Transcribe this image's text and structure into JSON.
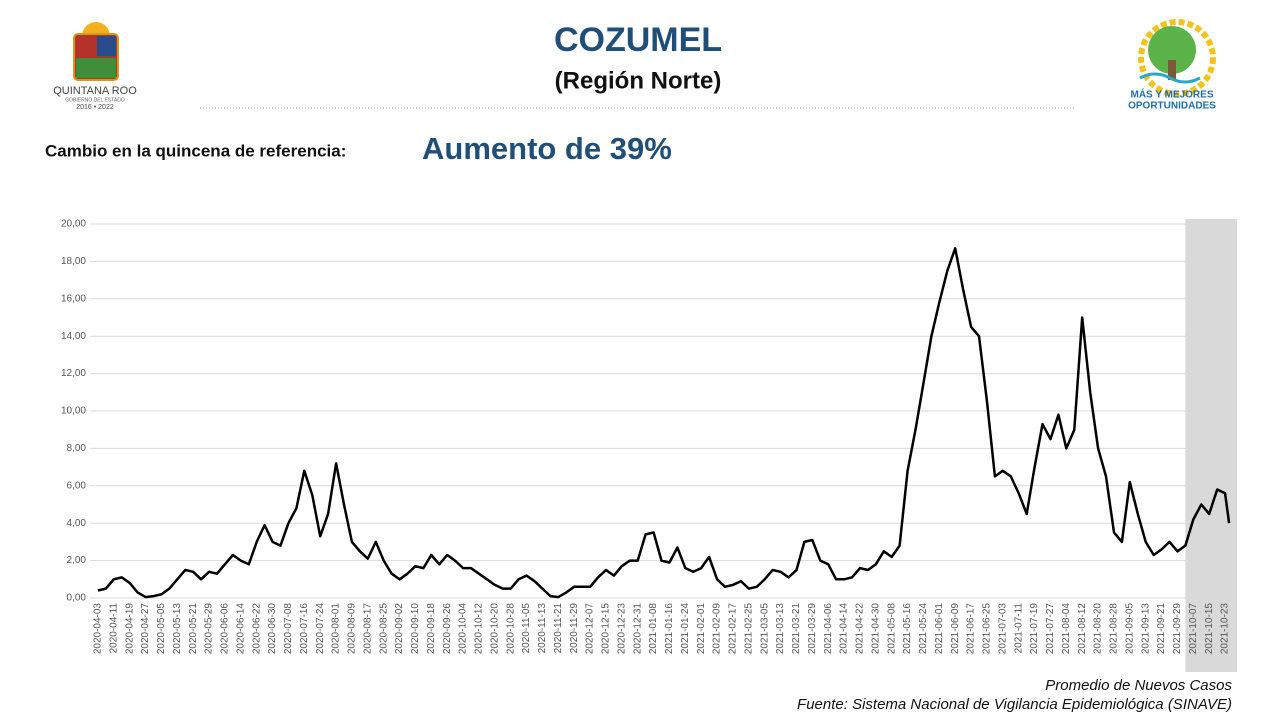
{
  "header": {
    "title": "COZUMEL",
    "subtitle": "(Región Norte)",
    "change_label": "Cambio en la quincena de referencia:",
    "change_value": "Aumento de 39%"
  },
  "logos": {
    "left": {
      "name": "QUINTANA ROO",
      "sub": "GOBIERNO DEL ESTADO",
      "years": "2016 • 2022"
    },
    "right": {
      "line1": "MÁS Y MEJORES",
      "line2": "OPORTUNIDADES"
    }
  },
  "footer": {
    "note": "Promedio de Nuevos Casos",
    "source": "Fuente: Sistema Nacional de Vigilancia Epidemiológica (SINAVE)"
  },
  "chart_data": {
    "type": "line",
    "color": "#000000",
    "grid": true,
    "xlim": [
      "2020-03-30",
      "2021-10-29"
    ],
    "highlight_range": [
      "2021-10-03",
      "2021-10-29"
    ],
    "ylim": [
      0,
      20
    ],
    "yticks": [
      {
        "value": 0,
        "label": "0,00"
      },
      {
        "value": 2,
        "label": "2,00"
      },
      {
        "value": 4,
        "label": "4,00"
      },
      {
        "value": 6,
        "label": "6,00"
      },
      {
        "value": 8,
        "label": "8,00"
      },
      {
        "value": 10,
        "label": "10,00"
      },
      {
        "value": 12,
        "label": "12,00"
      },
      {
        "value": 14,
        "label": "14,00"
      },
      {
        "value": 16,
        "label": "16,00"
      },
      {
        "value": 18,
        "label": "18,00"
      },
      {
        "value": 20,
        "label": "20,00"
      }
    ],
    "xticks": [
      "2020-04-03",
      "2020-04-11",
      "2020-04-19",
      "2020-04-27",
      "2020-05-05",
      "2020-05-13",
      "2020-05-21",
      "2020-05-29",
      "2020-06-06",
      "2020-06-14",
      "2020-06-22",
      "2020-06-30",
      "2020-07-08",
      "2020-07-16",
      "2020-07-24",
      "2020-08-01",
      "2020-08-09",
      "2020-08-17",
      "2020-08-25",
      "2020-09-02",
      "2020-09-10",
      "2020-09-18",
      "2020-09-26",
      "2020-10-04",
      "2020-10-12",
      "2020-10-20",
      "2020-10-28",
      "2020-11-05",
      "2020-11-13",
      "2020-11-21",
      "2020-11-29",
      "2020-12-07",
      "2020-12-15",
      "2020-12-23",
      "2020-12-31",
      "2021-01-08",
      "2021-01-16",
      "2021-01-24",
      "2021-02-01",
      "2021-02-09",
      "2021-02-17",
      "2021-02-25",
      "2021-03-05",
      "2021-03-13",
      "2021-03-21",
      "2021-03-29",
      "2021-04-06",
      "2021-04-14",
      "2021-04-22",
      "2021-04-30",
      "2021-05-08",
      "2021-05-16",
      "2021-05-24",
      "2021-06-01",
      "2021-06-09",
      "2021-06-17",
      "2021-06-25",
      "2021-07-03",
      "2021-07-11",
      "2021-07-19",
      "2021-07-27",
      "2021-08-04",
      "2021-08-12",
      "2021-08-20",
      "2021-08-28",
      "2021-09-05",
      "2021-09-13",
      "2021-09-21",
      "2021-09-29",
      "2021-10-07",
      "2021-10-15",
      "2021-10-23"
    ],
    "x": [
      "2020-04-03",
      "2020-04-07",
      "2020-04-11",
      "2020-04-15",
      "2020-04-19",
      "2020-04-23",
      "2020-04-27",
      "2020-05-01",
      "2020-05-05",
      "2020-05-09",
      "2020-05-13",
      "2020-05-17",
      "2020-05-21",
      "2020-05-25",
      "2020-05-29",
      "2020-06-02",
      "2020-06-06",
      "2020-06-10",
      "2020-06-14",
      "2020-06-18",
      "2020-06-22",
      "2020-06-26",
      "2020-06-30",
      "2020-07-04",
      "2020-07-08",
      "2020-07-12",
      "2020-07-16",
      "2020-07-20",
      "2020-07-24",
      "2020-07-28",
      "2020-08-01",
      "2020-08-05",
      "2020-08-09",
      "2020-08-13",
      "2020-08-17",
      "2020-08-21",
      "2020-08-25",
      "2020-08-29",
      "2020-09-02",
      "2020-09-06",
      "2020-09-10",
      "2020-09-14",
      "2020-09-18",
      "2020-09-22",
      "2020-09-26",
      "2020-09-30",
      "2020-10-04",
      "2020-10-08",
      "2020-10-12",
      "2020-10-16",
      "2020-10-20",
      "2020-10-24",
      "2020-10-28",
      "2020-11-01",
      "2020-11-05",
      "2020-11-09",
      "2020-11-13",
      "2020-11-17",
      "2020-11-21",
      "2020-11-25",
      "2020-11-29",
      "2020-12-03",
      "2020-12-07",
      "2020-12-11",
      "2020-12-15",
      "2020-12-19",
      "2020-12-23",
      "2020-12-27",
      "2020-12-31",
      "2021-01-04",
      "2021-01-08",
      "2021-01-12",
      "2021-01-16",
      "2021-01-20",
      "2021-01-24",
      "2021-01-28",
      "2021-02-01",
      "2021-02-05",
      "2021-02-09",
      "2021-02-13",
      "2021-02-17",
      "2021-02-21",
      "2021-02-25",
      "2021-03-01",
      "2021-03-05",
      "2021-03-09",
      "2021-03-13",
      "2021-03-17",
      "2021-03-21",
      "2021-03-25",
      "2021-03-29",
      "2021-04-02",
      "2021-04-06",
      "2021-04-10",
      "2021-04-14",
      "2021-04-18",
      "2021-04-22",
      "2021-04-26",
      "2021-04-30",
      "2021-05-04",
      "2021-05-08",
      "2021-05-12",
      "2021-05-16",
      "2021-05-20",
      "2021-05-24",
      "2021-05-28",
      "2021-06-01",
      "2021-06-05",
      "2021-06-09",
      "2021-06-13",
      "2021-06-17",
      "2021-06-21",
      "2021-06-25",
      "2021-06-29",
      "2021-07-03",
      "2021-07-07",
      "2021-07-11",
      "2021-07-15",
      "2021-07-19",
      "2021-07-23",
      "2021-07-27",
      "2021-07-31",
      "2021-08-04",
      "2021-08-08",
      "2021-08-12",
      "2021-08-16",
      "2021-08-20",
      "2021-08-24",
      "2021-08-28",
      "2021-09-01",
      "2021-09-05",
      "2021-09-09",
      "2021-09-13",
      "2021-09-17",
      "2021-09-21",
      "2021-09-25",
      "2021-09-29",
      "2021-10-03",
      "2021-10-07",
      "2021-10-11",
      "2021-10-15",
      "2021-10-19",
      "2021-10-23",
      "2021-10-25"
    ],
    "values": [
      0.4,
      0.5,
      1.0,
      1.1,
      0.8,
      0.3,
      0.05,
      0.1,
      0.2,
      0.5,
      1.0,
      1.5,
      1.4,
      1.0,
      1.4,
      1.3,
      1.8,
      2.3,
      2.0,
      1.8,
      3.0,
      3.9,
      3.0,
      2.8,
      4.0,
      4.8,
      6.8,
      5.5,
      3.3,
      4.5,
      7.2,
      5.0,
      3.0,
      2.5,
      2.1,
      3.0,
      2.0,
      1.3,
      1.0,
      1.3,
      1.7,
      1.6,
      2.3,
      1.8,
      2.3,
      2.0,
      1.6,
      1.6,
      1.3,
      1.0,
      0.7,
      0.5,
      0.5,
      1.0,
      1.2,
      0.9,
      0.5,
      0.1,
      0.05,
      0.3,
      0.6,
      0.6,
      0.6,
      1.1,
      1.5,
      1.2,
      1.7,
      2.0,
      2.0,
      3.4,
      3.5,
      2.0,
      1.9,
      2.7,
      1.6,
      1.4,
      1.6,
      2.2,
      1.0,
      0.6,
      0.7,
      0.9,
      0.5,
      0.6,
      1.0,
      1.5,
      1.4,
      1.1,
      1.5,
      3.0,
      3.1,
      2.0,
      1.8,
      1.0,
      1.0,
      1.1,
      1.6,
      1.5,
      1.8,
      2.5,
      2.2,
      2.8,
      6.8,
      9.0,
      11.5,
      14.0,
      15.8,
      17.5,
      18.7,
      16.5,
      14.5,
      14.0,
      10.5,
      6.5,
      6.8,
      6.5,
      5.6,
      4.5,
      7.0,
      9.3,
      8.5,
      9.8,
      8.0,
      9.0,
      15.0,
      11.0,
      8.0,
      6.5,
      3.5,
      3.0,
      6.2,
      4.5,
      3.0,
      2.3,
      2.6,
      3.0,
      2.5,
      2.8,
      4.2,
      5.0,
      4.5,
      5.8,
      5.6,
      4.0
    ]
  }
}
